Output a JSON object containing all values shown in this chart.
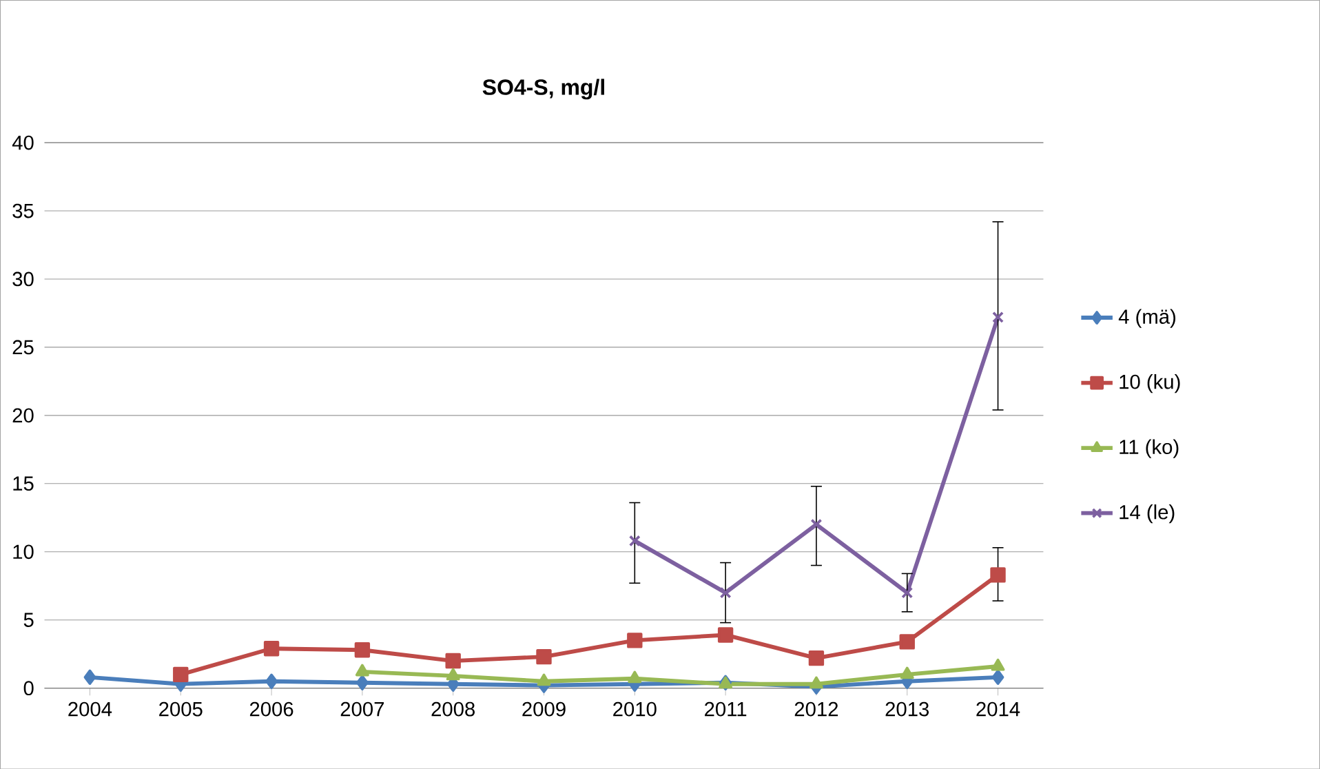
{
  "chart_data": {
    "type": "line",
    "title": "SO4-S, mg/l",
    "categories": [
      "2004",
      "2005",
      "2006",
      "2007",
      "2008",
      "2009",
      "2010",
      "2011",
      "2012",
      "2013",
      "2014"
    ],
    "series": [
      {
        "name": "4 (mä)",
        "color": "#4a7ebb",
        "marker": "diamond",
        "values": [
          0.8,
          0.3,
          0.5,
          0.4,
          0.3,
          0.2,
          0.3,
          0.4,
          0.1,
          0.5,
          0.8
        ]
      },
      {
        "name": "10 (ku)",
        "color": "#be4b48",
        "marker": "square",
        "values": [
          null,
          1.0,
          2.9,
          2.8,
          2.0,
          2.3,
          3.5,
          3.9,
          2.2,
          3.4,
          8.3
        ],
        "errors": [
          null,
          null,
          null,
          null,
          null,
          null,
          null,
          null,
          null,
          null,
          [
            6.4,
            10.3
          ]
        ]
      },
      {
        "name": "11 (ko)",
        "color": "#98b954",
        "marker": "triangle",
        "values": [
          null,
          null,
          null,
          1.2,
          0.9,
          0.5,
          0.7,
          0.3,
          0.3,
          1.0,
          1.6
        ]
      },
      {
        "name": "14 (le)",
        "color": "#7d60a0",
        "marker": "cross",
        "values": [
          null,
          null,
          null,
          null,
          null,
          null,
          10.8,
          7.0,
          12.0,
          7.0,
          27.2
        ],
        "errors": [
          null,
          null,
          null,
          null,
          null,
          null,
          [
            7.7,
            13.6
          ],
          [
            4.8,
            9.2
          ],
          [
            9.0,
            14.8
          ],
          [
            5.6,
            8.4
          ],
          [
            20.4,
            34.2
          ]
        ]
      }
    ],
    "ylim": [
      0,
      40
    ],
    "yticks": [
      0,
      5,
      10,
      15,
      20,
      25,
      30,
      35,
      40
    ],
    "grid": "y",
    "legend": "right"
  }
}
